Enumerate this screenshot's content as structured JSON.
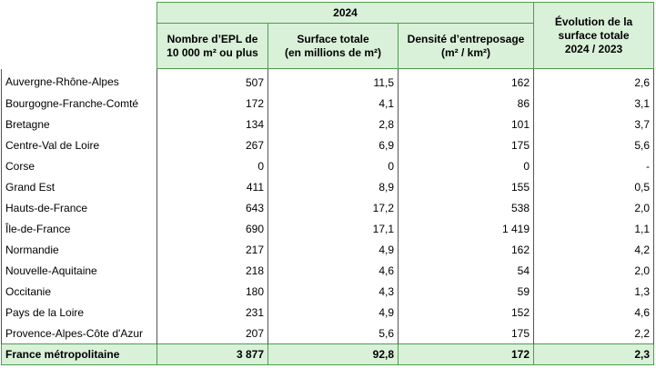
{
  "table": {
    "group_header": "2024",
    "headers": [
      "Nombre d’EPL de\n10 000 m² ou plus",
      "Surface totale\n(en millions de m²)",
      "Densité d’entreposage\n(m² / km²)",
      "Évolution de la\nsurface totale\n2024 / 2023"
    ],
    "rows": [
      [
        "Auvergne-Rhône-Alpes",
        "507",
        "11,5",
        "162",
        "2,6"
      ],
      [
        "Bourgogne-Franche-Comté",
        "172",
        "4,1",
        "86",
        "3,1"
      ],
      [
        "Bretagne",
        "134",
        "2,8",
        "101",
        "3,7"
      ],
      [
        "Centre-Val de Loire",
        "267",
        "6,9",
        "175",
        "5,6"
      ],
      [
        "Corse",
        "0",
        "0",
        "0",
        "-"
      ],
      [
        "Grand Est",
        "411",
        "8,9",
        "155",
        "0,5"
      ],
      [
        "Hauts-de-France",
        "643",
        "17,2",
        "538",
        "2,0"
      ],
      [
        "Île-de-France",
        "690",
        "17,1",
        "1 419",
        "1,1"
      ],
      [
        "Normandie",
        "217",
        "4,9",
        "162",
        "4,2"
      ],
      [
        "Nouvelle-Aquitaine",
        "218",
        "4,6",
        "54",
        "2,0"
      ],
      [
        "Occitanie",
        "180",
        "4,3",
        "59",
        "1,3"
      ],
      [
        "Pays de la Loire",
        "231",
        "4,9",
        "152",
        "4,6"
      ],
      [
        "Provence-Alpes-Côte d'Azur",
        "207",
        "5,6",
        "175",
        "2,2"
      ]
    ],
    "total": [
      "France métropolitaine",
      "3 877",
      "92,8",
      "172",
      "2,3"
    ]
  }
}
